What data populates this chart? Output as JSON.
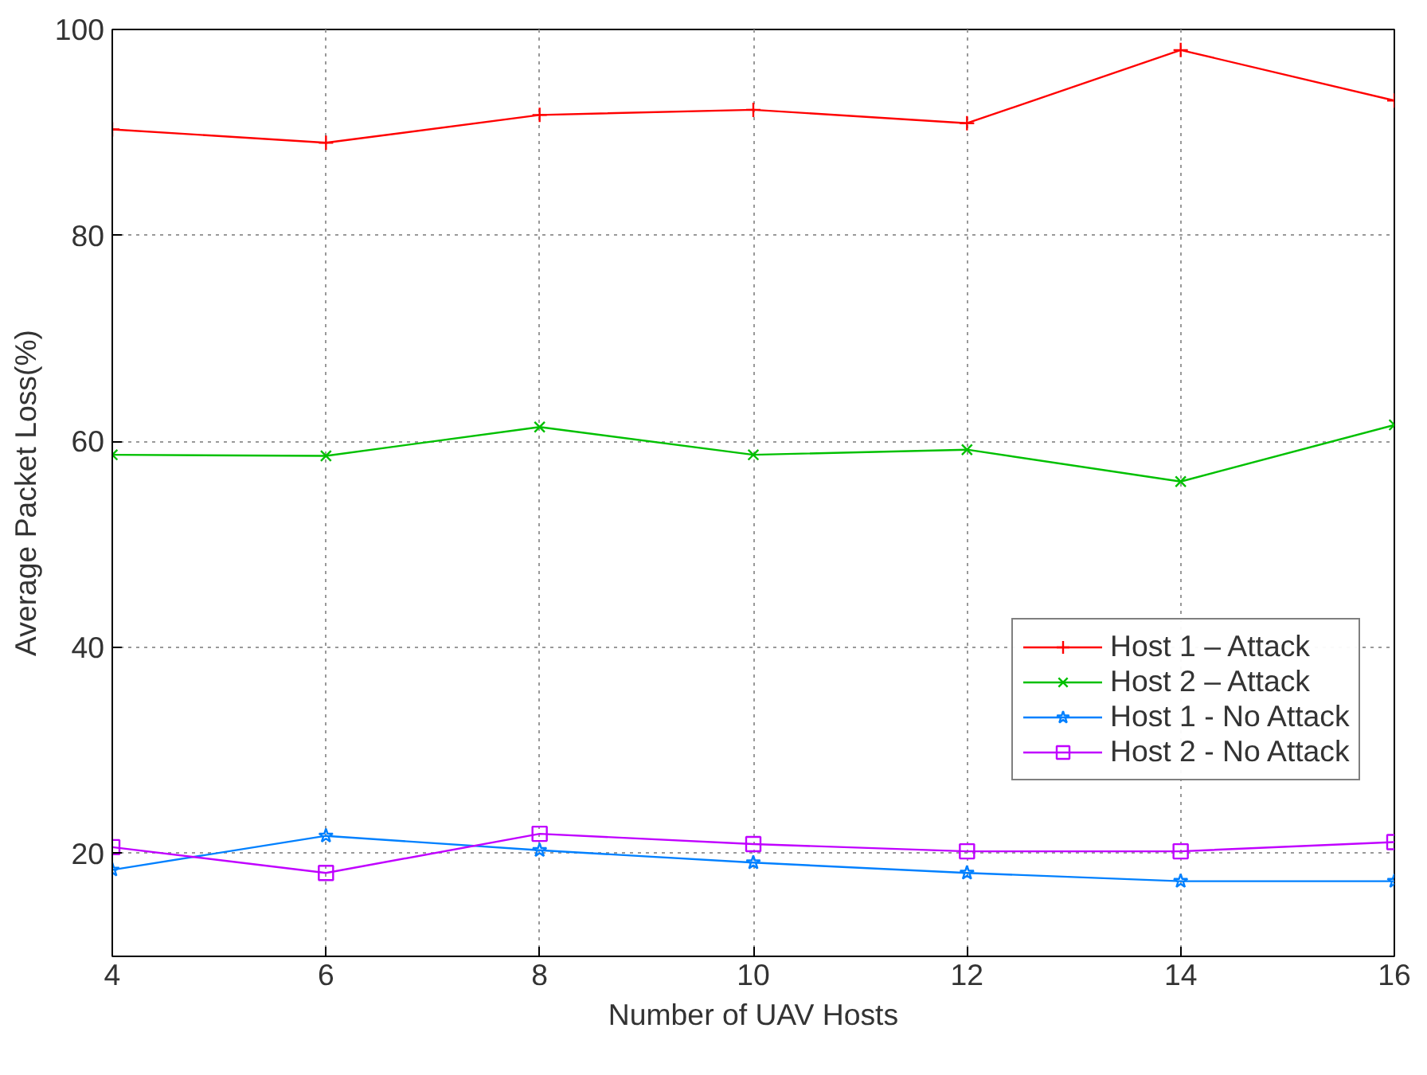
{
  "chart_data": {
    "type": "line",
    "xlabel": "Number of UAV Hosts",
    "ylabel": "Average Packet Loss(%)",
    "x": [
      4,
      6,
      8,
      10,
      12,
      14,
      16
    ],
    "xlim": [
      4,
      16
    ],
    "xticks": [
      4,
      6,
      8,
      10,
      12,
      14,
      16
    ],
    "ylim": [
      10,
      100
    ],
    "yticks": [
      20,
      40,
      60,
      80,
      100
    ],
    "grid": true,
    "legend": "right",
    "line_style": "solid",
    "series": [
      {
        "name": "Host 1 – Attack",
        "color": "#ff0000",
        "marker": "cross",
        "values": [
          90.3,
          89.0,
          91.7,
          92.2,
          90.9,
          98.0,
          93.1
        ]
      },
      {
        "name": "Host 2 – Attack",
        "color": "#00c000",
        "marker": "x",
        "values": [
          58.7,
          58.6,
          61.4,
          58.7,
          59.2,
          56.1,
          61.6
        ]
      },
      {
        "name": "Host 1 - No Attack",
        "color": "#0080ff",
        "marker": "star",
        "values": [
          18.4,
          21.7,
          20.3,
          19.1,
          18.1,
          17.3,
          17.3
        ]
      },
      {
        "name": "Host 2 - No Attack",
        "color": "#c000ff",
        "marker": "square",
        "values": [
          20.6,
          18.1,
          21.9,
          20.9,
          20.2,
          20.2,
          21.1
        ]
      }
    ]
  }
}
